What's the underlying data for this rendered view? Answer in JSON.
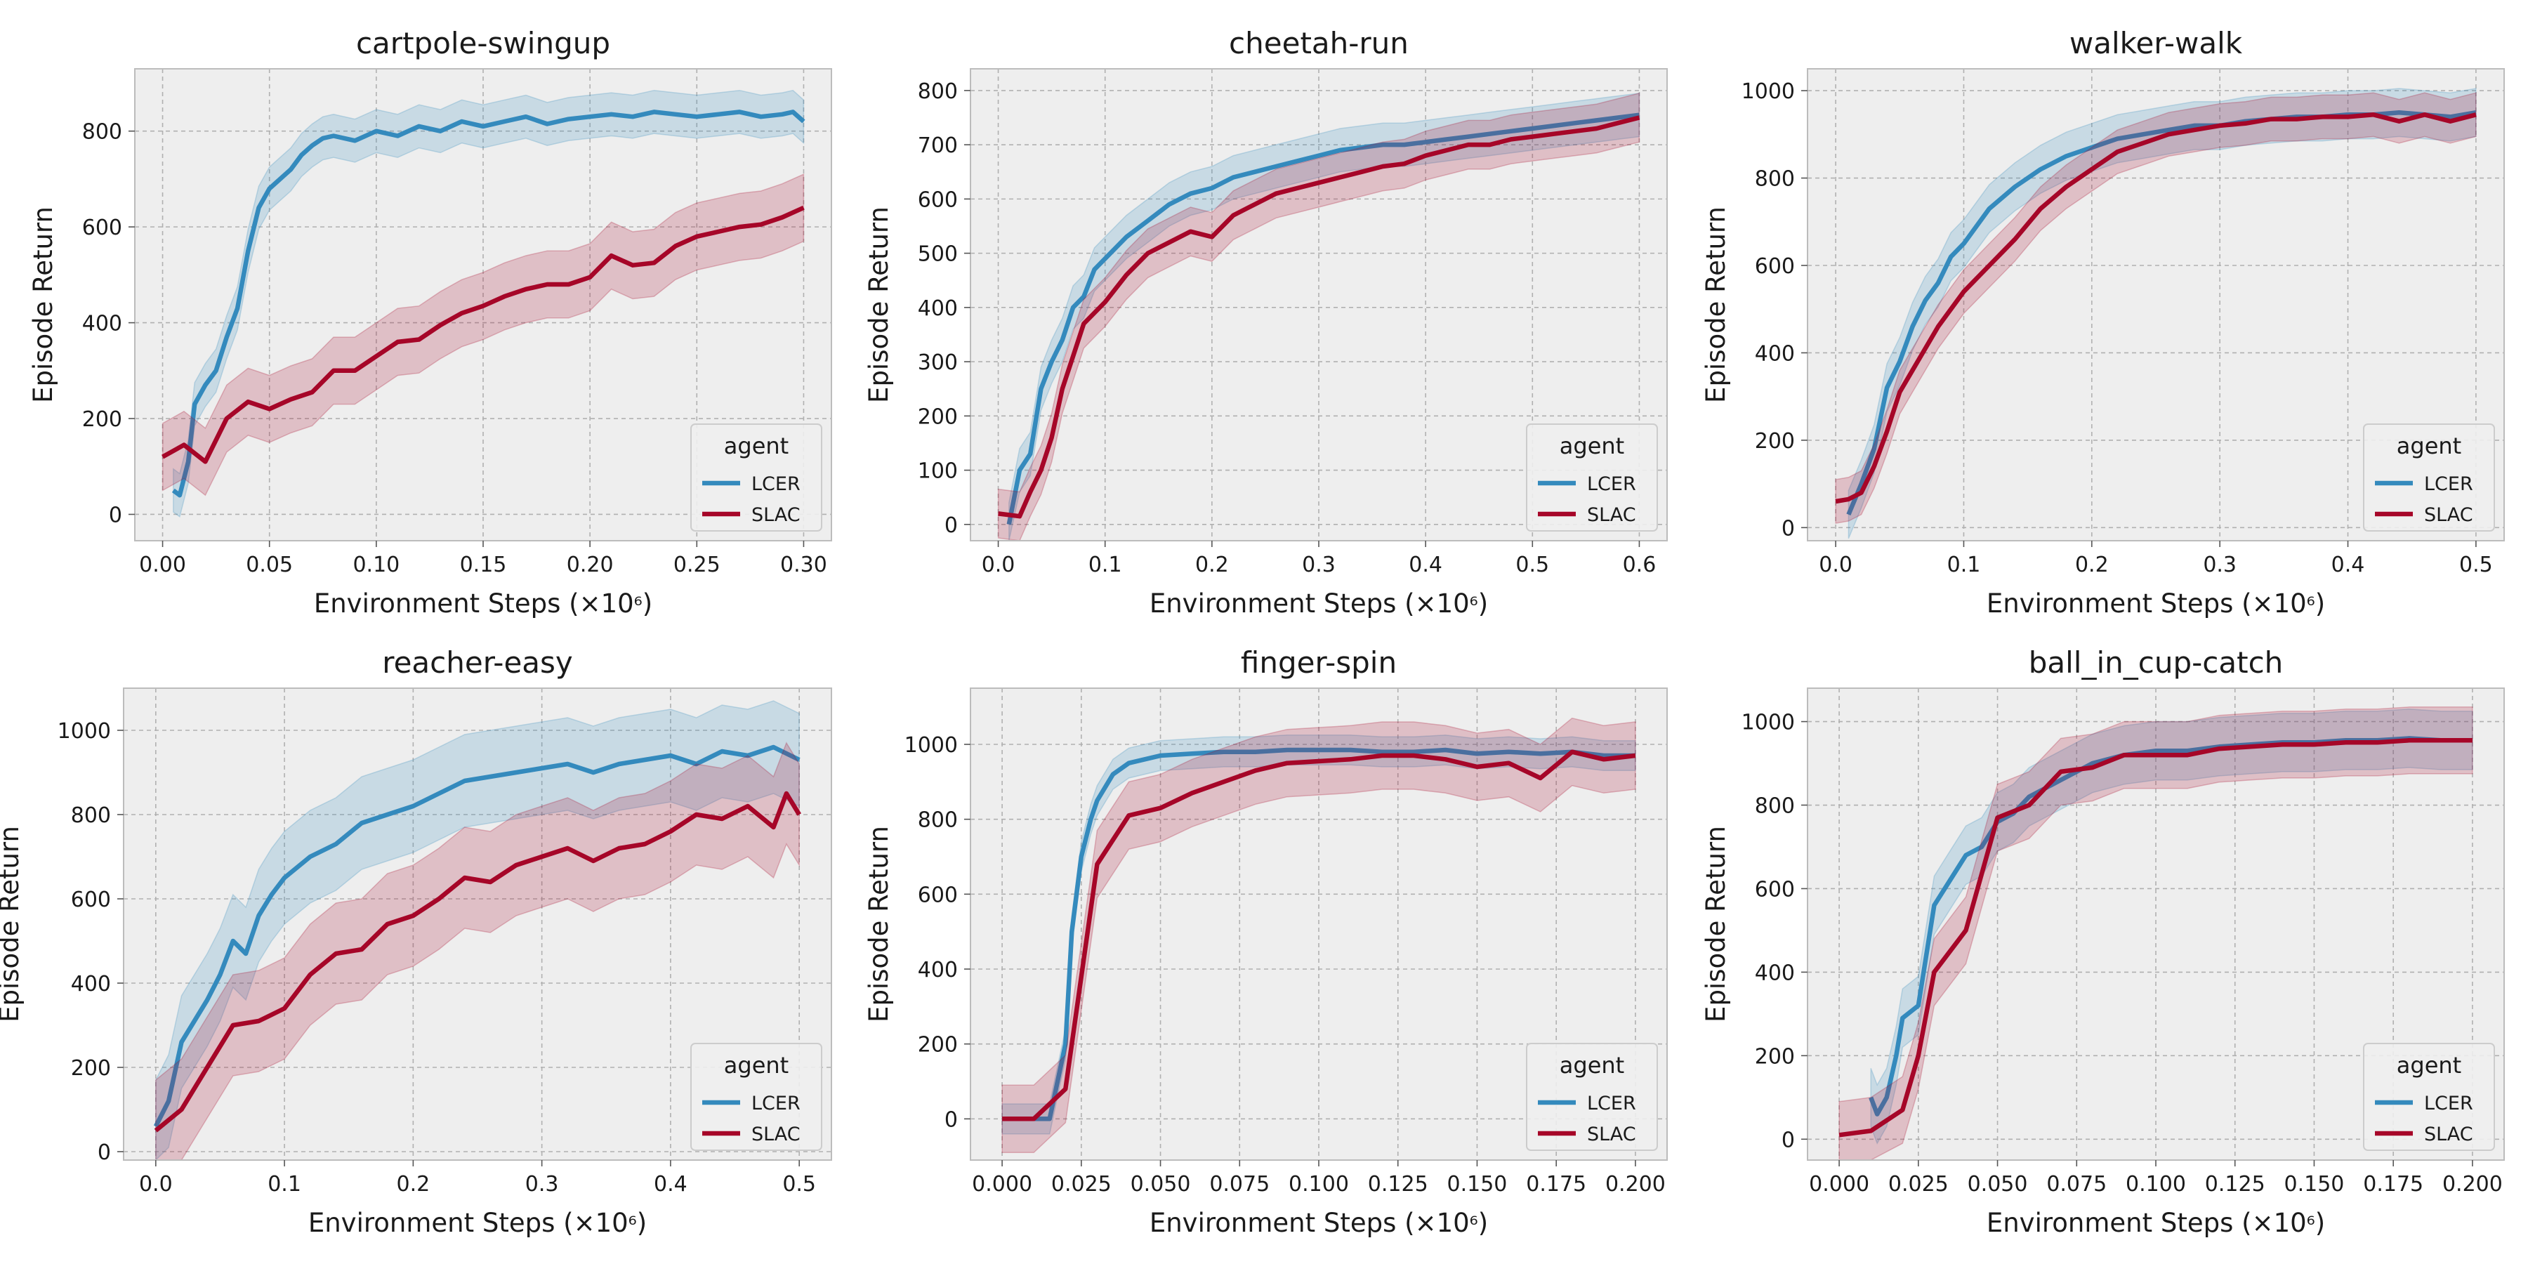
{
  "colors": {
    "lcer": "#348abd",
    "slac": "#a60628",
    "panel_bg": "#eeeeee",
    "grid": "#b0b0b0",
    "frame": "#bcbcbc"
  },
  "chart_data": [
    {
      "type": "line",
      "title": "cartpole-swingup",
      "xlabel": "Environment Steps (×10⁶)",
      "ylabel": "Episode Return",
      "xlim": [
        -0.013,
        0.313
      ],
      "ylim": [
        -55,
        930
      ],
      "xticks": [
        0.0,
        0.05,
        0.1,
        0.15,
        0.2,
        0.25,
        0.3
      ],
      "xtick_labels": [
        "0.00",
        "0.05",
        "0.10",
        "0.15",
        "0.20",
        "0.25",
        "0.30"
      ],
      "yticks": [
        0,
        200,
        400,
        600,
        800
      ],
      "ytick_labels": [
        "0",
        "200",
        "400",
        "600",
        "800"
      ],
      "grid": true,
      "legend": {
        "title": "agent",
        "position": "lower-right"
      },
      "series": [
        {
          "name": "LCER",
          "band": 45,
          "x": [
            0.005,
            0.008,
            0.012,
            0.015,
            0.02,
            0.025,
            0.03,
            0.035,
            0.04,
            0.045,
            0.05,
            0.055,
            0.06,
            0.065,
            0.07,
            0.075,
            0.08,
            0.09,
            0.1,
            0.11,
            0.12,
            0.13,
            0.14,
            0.15,
            0.16,
            0.17,
            0.18,
            0.19,
            0.2,
            0.21,
            0.22,
            0.23,
            0.24,
            0.25,
            0.26,
            0.27,
            0.28,
            0.29,
            0.295,
            0.3
          ],
          "y": [
            50,
            40,
            110,
            230,
            270,
            300,
            370,
            430,
            550,
            640,
            680,
            700,
            720,
            750,
            770,
            785,
            790,
            780,
            800,
            790,
            810,
            800,
            820,
            810,
            820,
            830,
            815,
            825,
            830,
            835,
            830,
            840,
            835,
            830,
            835,
            840,
            830,
            835,
            840,
            820
          ]
        },
        {
          "name": "SLAC",
          "band": 70,
          "x": [
            0.0,
            0.01,
            0.02,
            0.03,
            0.04,
            0.05,
            0.06,
            0.07,
            0.08,
            0.09,
            0.1,
            0.11,
            0.12,
            0.13,
            0.14,
            0.15,
            0.16,
            0.17,
            0.18,
            0.19,
            0.2,
            0.21,
            0.22,
            0.23,
            0.24,
            0.25,
            0.26,
            0.27,
            0.28,
            0.29,
            0.3
          ],
          "y": [
            120,
            145,
            110,
            200,
            235,
            220,
            240,
            255,
            300,
            300,
            330,
            360,
            365,
            395,
            420,
            435,
            455,
            470,
            480,
            480,
            495,
            540,
            520,
            525,
            560,
            580,
            590,
            600,
            605,
            620,
            640
          ]
        }
      ]
    },
    {
      "type": "line",
      "title": "cheetah-run",
      "xlabel": "Environment Steps (×10⁶)",
      "ylabel": "Episode Return",
      "xlim": [
        -0.026,
        0.626
      ],
      "ylim": [
        -30,
        840
      ],
      "xticks": [
        0.0,
        0.1,
        0.2,
        0.3,
        0.4,
        0.5,
        0.6
      ],
      "xtick_labels": [
        "0.0",
        "0.1",
        "0.2",
        "0.3",
        "0.4",
        "0.5",
        "0.6"
      ],
      "yticks": [
        0,
        100,
        200,
        300,
        400,
        500,
        600,
        700,
        800
      ],
      "ytick_labels": [
        "0",
        "100",
        "200",
        "300",
        "400",
        "500",
        "600",
        "700",
        "800"
      ],
      "grid": true,
      "legend": {
        "title": "agent",
        "position": "lower-right"
      },
      "series": [
        {
          "name": "LCER",
          "band": 40,
          "x": [
            0.01,
            0.02,
            0.03,
            0.04,
            0.05,
            0.06,
            0.07,
            0.08,
            0.09,
            0.1,
            0.12,
            0.14,
            0.16,
            0.18,
            0.2,
            0.22,
            0.24,
            0.26,
            0.28,
            0.3,
            0.32,
            0.34,
            0.36,
            0.38,
            0.4,
            0.42,
            0.44,
            0.46,
            0.48,
            0.5,
            0.52,
            0.54,
            0.56,
            0.58,
            0.6
          ],
          "y": [
            0,
            100,
            130,
            250,
            300,
            340,
            400,
            420,
            470,
            490,
            530,
            560,
            590,
            610,
            620,
            640,
            650,
            660,
            670,
            680,
            690,
            695,
            700,
            700,
            705,
            710,
            715,
            720,
            725,
            730,
            735,
            740,
            745,
            750,
            755
          ]
        },
        {
          "name": "SLAC",
          "band": 45,
          "x": [
            0.0,
            0.02,
            0.03,
            0.04,
            0.05,
            0.06,
            0.07,
            0.08,
            0.1,
            0.12,
            0.14,
            0.16,
            0.18,
            0.2,
            0.22,
            0.24,
            0.26,
            0.28,
            0.3,
            0.32,
            0.34,
            0.36,
            0.38,
            0.4,
            0.42,
            0.44,
            0.46,
            0.48,
            0.5,
            0.52,
            0.54,
            0.56,
            0.58,
            0.6
          ],
          "y": [
            20,
            15,
            60,
            100,
            160,
            250,
            310,
            370,
            410,
            460,
            500,
            520,
            540,
            530,
            570,
            590,
            610,
            620,
            630,
            640,
            650,
            660,
            665,
            680,
            690,
            700,
            700,
            710,
            715,
            720,
            725,
            730,
            740,
            750
          ]
        }
      ]
    },
    {
      "type": "line",
      "title": "walker-walk",
      "xlabel": "Environment Steps (×10⁶)",
      "ylabel": "Episode Return",
      "xlim": [
        -0.022,
        0.522
      ],
      "ylim": [
        -30,
        1050
      ],
      "xticks": [
        0.0,
        0.1,
        0.2,
        0.3,
        0.4,
        0.5
      ],
      "xtick_labels": [
        "0.0",
        "0.1",
        "0.2",
        "0.3",
        "0.4",
        "0.5"
      ],
      "yticks": [
        0,
        200,
        400,
        600,
        800,
        1000
      ],
      "ytick_labels": [
        "0",
        "200",
        "400",
        "600",
        "800",
        "1000"
      ],
      "grid": true,
      "legend": {
        "title": "agent",
        "position": "lower-right"
      },
      "series": [
        {
          "name": "LCER",
          "band": 55,
          "x": [
            0.01,
            0.02,
            0.03,
            0.04,
            0.05,
            0.06,
            0.07,
            0.08,
            0.09,
            0.1,
            0.12,
            0.14,
            0.16,
            0.18,
            0.2,
            0.22,
            0.24,
            0.26,
            0.28,
            0.3,
            0.32,
            0.34,
            0.36,
            0.38,
            0.4,
            0.42,
            0.44,
            0.46,
            0.48,
            0.5
          ],
          "y": [
            30,
            100,
            180,
            320,
            380,
            460,
            520,
            560,
            620,
            650,
            730,
            780,
            820,
            850,
            870,
            890,
            900,
            910,
            920,
            920,
            930,
            935,
            940,
            940,
            945,
            945,
            950,
            945,
            940,
            950
          ]
        },
        {
          "name": "SLAC",
          "band": 50,
          "x": [
            0.0,
            0.01,
            0.02,
            0.03,
            0.04,
            0.05,
            0.06,
            0.08,
            0.1,
            0.12,
            0.14,
            0.16,
            0.18,
            0.2,
            0.22,
            0.24,
            0.26,
            0.28,
            0.3,
            0.32,
            0.34,
            0.36,
            0.38,
            0.4,
            0.42,
            0.44,
            0.46,
            0.48,
            0.5
          ],
          "y": [
            60,
            65,
            80,
            140,
            220,
            310,
            360,
            460,
            540,
            600,
            660,
            730,
            780,
            820,
            860,
            880,
            900,
            910,
            920,
            925,
            935,
            935,
            940,
            940,
            945,
            930,
            945,
            930,
            945
          ]
        }
      ]
    },
    {
      "type": "line",
      "title": "reacher-easy",
      "xlabel": "Environment Steps (×10⁶)",
      "ylabel": "Episode Return",
      "xlim": [
        -0.025,
        0.525
      ],
      "ylim": [
        -20,
        1100
      ],
      "xticks": [
        0.0,
        0.1,
        0.2,
        0.3,
        0.4,
        0.5
      ],
      "xtick_labels": [
        "0.0",
        "0.1",
        "0.2",
        "0.3",
        "0.4",
        "0.5"
      ],
      "yticks": [
        0,
        200,
        400,
        600,
        800,
        1000
      ],
      "ytick_labels": [
        "0",
        "200",
        "400",
        "600",
        "800",
        "1000"
      ],
      "grid": true,
      "legend": {
        "title": "agent",
        "position": "lower-right"
      },
      "series": [
        {
          "name": "LCER",
          "band": 110,
          "x": [
            0.0,
            0.01,
            0.02,
            0.03,
            0.04,
            0.05,
            0.06,
            0.07,
            0.08,
            0.09,
            0.1,
            0.12,
            0.14,
            0.16,
            0.18,
            0.2,
            0.22,
            0.24,
            0.26,
            0.28,
            0.3,
            0.32,
            0.34,
            0.36,
            0.38,
            0.4,
            0.42,
            0.44,
            0.46,
            0.48,
            0.5
          ],
          "y": [
            60,
            120,
            260,
            310,
            360,
            420,
            500,
            470,
            560,
            610,
            650,
            700,
            730,
            780,
            800,
            820,
            850,
            880,
            890,
            900,
            910,
            920,
            900,
            920,
            930,
            940,
            920,
            950,
            940,
            960,
            930
          ]
        },
        {
          "name": "SLAC",
          "band": 120,
          "x": [
            0.0,
            0.02,
            0.04,
            0.06,
            0.08,
            0.1,
            0.12,
            0.14,
            0.16,
            0.18,
            0.2,
            0.22,
            0.24,
            0.26,
            0.28,
            0.3,
            0.32,
            0.34,
            0.36,
            0.38,
            0.4,
            0.42,
            0.44,
            0.46,
            0.48,
            0.49,
            0.5
          ],
          "y": [
            50,
            100,
            200,
            300,
            310,
            340,
            420,
            470,
            480,
            540,
            560,
            600,
            650,
            640,
            680,
            700,
            720,
            690,
            720,
            730,
            760,
            800,
            790,
            820,
            770,
            850,
            800
          ]
        }
      ]
    },
    {
      "type": "line",
      "title": "finger-spin",
      "xlabel": "Environment Steps (×10⁶)",
      "ylabel": "Episode Return",
      "xlim": [
        -0.01,
        0.21
      ],
      "ylim": [
        -110,
        1150
      ],
      "xticks": [
        0.0,
        0.025,
        0.05,
        0.075,
        0.1,
        0.125,
        0.15,
        0.175,
        0.2
      ],
      "xtick_labels": [
        "0.000",
        "0.025",
        "0.050",
        "0.075",
        "0.100",
        "0.125",
        "0.150",
        "0.175",
        "0.200"
      ],
      "yticks": [
        0,
        200,
        400,
        600,
        800,
        1000
      ],
      "ytick_labels": [
        "0",
        "200",
        "400",
        "600",
        "800",
        "1000"
      ],
      "grid": true,
      "legend": {
        "title": "agent",
        "position": "lower-right"
      },
      "series": [
        {
          "name": "LCER",
          "band": 40,
          "x": [
            0.0,
            0.01,
            0.015,
            0.02,
            0.022,
            0.025,
            0.028,
            0.03,
            0.035,
            0.04,
            0.05,
            0.06,
            0.07,
            0.08,
            0.09,
            0.1,
            0.11,
            0.12,
            0.13,
            0.14,
            0.15,
            0.16,
            0.17,
            0.18,
            0.19,
            0.2
          ],
          "y": [
            0,
            0,
            0,
            200,
            500,
            700,
            800,
            850,
            920,
            950,
            970,
            975,
            980,
            980,
            985,
            985,
            985,
            980,
            980,
            985,
            975,
            980,
            975,
            980,
            970,
            970
          ]
        },
        {
          "name": "SLAC",
          "band": 90,
          "x": [
            0.0,
            0.01,
            0.02,
            0.03,
            0.04,
            0.05,
            0.06,
            0.07,
            0.08,
            0.09,
            0.1,
            0.11,
            0.12,
            0.13,
            0.14,
            0.15,
            0.16,
            0.17,
            0.18,
            0.19,
            0.2
          ],
          "y": [
            0,
            0,
            80,
            680,
            810,
            830,
            870,
            900,
            930,
            950,
            955,
            960,
            970,
            970,
            960,
            940,
            950,
            910,
            980,
            960,
            970
          ]
        }
      ]
    },
    {
      "type": "line",
      "title": "ball_in_cup-catch",
      "xlabel": "Environment Steps (×10⁶)",
      "ylabel": "Episode Return",
      "xlim": [
        -0.01,
        0.21
      ],
      "ylim": [
        -50,
        1080
      ],
      "xticks": [
        0.0,
        0.025,
        0.05,
        0.075,
        0.1,
        0.125,
        0.15,
        0.175,
        0.2
      ],
      "xtick_labels": [
        "0.000",
        "0.025",
        "0.050",
        "0.075",
        "0.100",
        "0.125",
        "0.150",
        "0.175",
        "0.200"
      ],
      "yticks": [
        0,
        200,
        400,
        600,
        800,
        1000
      ],
      "ytick_labels": [
        "0",
        "200",
        "400",
        "600",
        "800",
        "1000"
      ],
      "grid": true,
      "legend": {
        "title": "agent",
        "position": "lower-right"
      },
      "series": [
        {
          "name": "LCER",
          "band": 70,
          "x": [
            0.01,
            0.012,
            0.015,
            0.018,
            0.02,
            0.025,
            0.03,
            0.035,
            0.04,
            0.045,
            0.05,
            0.055,
            0.06,
            0.07,
            0.08,
            0.09,
            0.1,
            0.11,
            0.12,
            0.13,
            0.14,
            0.15,
            0.16,
            0.17,
            0.18,
            0.19,
            0.2
          ],
          "y": [
            100,
            60,
            100,
            200,
            290,
            320,
            560,
            620,
            680,
            700,
            760,
            780,
            820,
            860,
            900,
            920,
            930,
            930,
            940,
            945,
            950,
            950,
            955,
            955,
            960,
            955,
            955
          ]
        },
        {
          "name": "SLAC",
          "band": 80,
          "x": [
            0.0,
            0.01,
            0.02,
            0.025,
            0.03,
            0.04,
            0.05,
            0.06,
            0.07,
            0.08,
            0.09,
            0.1,
            0.11,
            0.12,
            0.13,
            0.14,
            0.15,
            0.16,
            0.17,
            0.18,
            0.19,
            0.2
          ],
          "y": [
            10,
            20,
            70,
            200,
            400,
            500,
            770,
            800,
            880,
            890,
            920,
            920,
            920,
            935,
            940,
            945,
            945,
            950,
            950,
            955,
            955,
            955
          ]
        }
      ]
    }
  ]
}
